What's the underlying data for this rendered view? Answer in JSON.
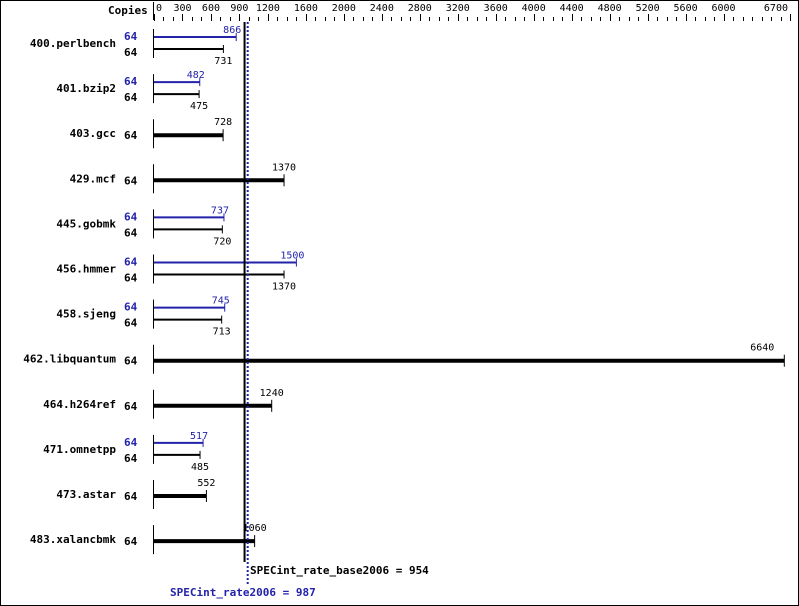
{
  "chart_data": {
    "type": "bar",
    "orientation": "horizontal",
    "copies_header": "Copies",
    "xlim": [
      0,
      6700
    ],
    "ticks": [
      0,
      300,
      600,
      900,
      1200,
      1600,
      2000,
      2400,
      2800,
      3200,
      3600,
      4000,
      4400,
      4800,
      5200,
      5600,
      6000,
      6700
    ],
    "minor_tick_step": 100,
    "colors": {
      "base": "#000000",
      "peak": "#2222aa"
    },
    "benchmarks": [
      {
        "name": "400.perlbench",
        "peak_copies": "64",
        "peak": 866,
        "base_copies": "64",
        "base": 731
      },
      {
        "name": "401.bzip2",
        "peak_copies": "64",
        "peak": 482,
        "base_copies": "64",
        "base": 475
      },
      {
        "name": "403.gcc",
        "base_copies": "64",
        "base": 728
      },
      {
        "name": "429.mcf",
        "base_copies": "64",
        "base": 1370
      },
      {
        "name": "445.gobmk",
        "peak_copies": "64",
        "peak": 737,
        "base_copies": "64",
        "base": 720
      },
      {
        "name": "456.hmmer",
        "peak_copies": "64",
        "peak": 1500,
        "base_copies": "64",
        "base": 1370
      },
      {
        "name": "458.sjeng",
        "peak_copies": "64",
        "peak": 745,
        "base_copies": "64",
        "base": 713
      },
      {
        "name": "462.libquantum",
        "base_copies": "64",
        "base": 6640
      },
      {
        "name": "464.h264ref",
        "base_copies": "64",
        "base": 1240
      },
      {
        "name": "471.omnetpp",
        "peak_copies": "64",
        "peak": 517,
        "base_copies": "64",
        "base": 485
      },
      {
        "name": "473.astar",
        "base_copies": "64",
        "base": 552
      },
      {
        "name": "483.xalancbmk",
        "base_copies": "64",
        "base": 1060
      }
    ],
    "base_summary": {
      "label": "SPECint_rate_base2006 = 954",
      "value": 954
    },
    "peak_summary": {
      "label": "SPECint_rate2006 = 987",
      "value": 987
    }
  }
}
